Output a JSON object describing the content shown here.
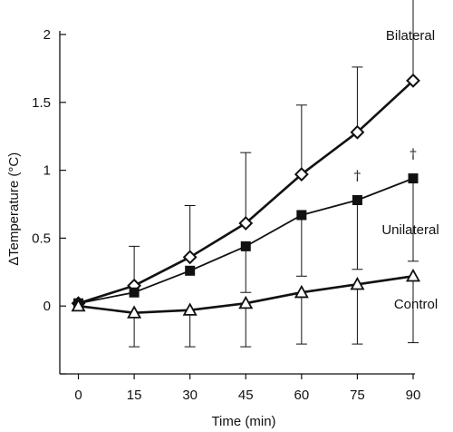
{
  "chart_data": {
    "type": "line",
    "x": [
      0,
      15,
      30,
      45,
      60,
      75,
      90
    ],
    "xlabel": "Time (min)",
    "ylabel": "∆Temperature (°C)",
    "xlim": [
      -5,
      90
    ],
    "ylim": [
      -0.5,
      2
    ],
    "x_ticks": [
      0,
      15,
      30,
      45,
      60,
      75,
      90
    ],
    "y_ticks": [
      0,
      0.5,
      1,
      1.5,
      2
    ],
    "y_tick_labels": [
      "0",
      "0.5",
      "1",
      "1.5",
      "2"
    ],
    "grid": false,
    "series": [
      {
        "name": "Bilateral",
        "marker": "diamond-open",
        "values": [
          0.02,
          0.15,
          0.36,
          0.61,
          0.97,
          1.28,
          1.66
        ],
        "error_upper": [
          null,
          null,
          0.74,
          1.13,
          1.48,
          1.76,
          2.26
        ],
        "error_lower": [
          null,
          null,
          null,
          null,
          null,
          null,
          null
        ]
      },
      {
        "name": "Unilateral",
        "marker": "square-filled",
        "values": [
          0.02,
          0.1,
          0.26,
          0.44,
          0.67,
          0.78,
          0.94
        ],
        "error_upper": [
          null,
          0.44,
          null,
          null,
          null,
          null,
          null
        ],
        "error_lower": [
          null,
          null,
          null,
          0.1,
          0.22,
          0.27,
          0.33
        ],
        "annotations": [
          {
            "x": 75,
            "text": "†"
          },
          {
            "x": 90,
            "text": "†"
          }
        ]
      },
      {
        "name": "Control",
        "marker": "triangle-open",
        "values": [
          0.0,
          -0.05,
          -0.03,
          0.02,
          0.1,
          0.16,
          0.22
        ],
        "error_upper": [
          null,
          null,
          null,
          null,
          null,
          null,
          null
        ],
        "error_lower": [
          null,
          -0.3,
          -0.3,
          -0.3,
          -0.28,
          -0.28,
          -0.27
        ]
      }
    ],
    "colors": {
      "line": "#111111",
      "fill_open": "#ffffff",
      "fill_solid": "#111111"
    }
  }
}
